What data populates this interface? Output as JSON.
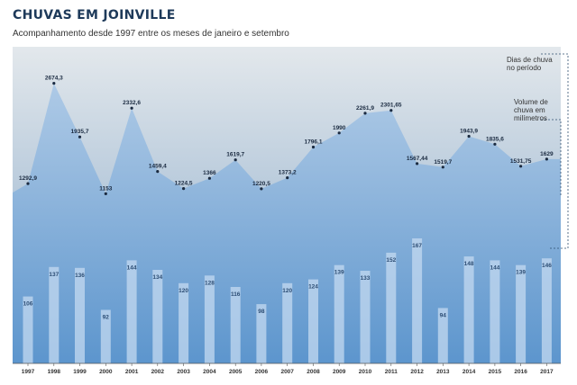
{
  "chart_data": {
    "type": "area+bar",
    "title": "CHUVAS EM JOINVILLE",
    "subtitle": "Acompanhamento desde 1997 entre os meses de janeiro e setembro",
    "categories": [
      "1997",
      "1998",
      "1999",
      "2000",
      "2001",
      "2002",
      "2003",
      "2004",
      "2005",
      "2006",
      "2007",
      "2008",
      "2009",
      "2010",
      "2011",
      "2012",
      "2013",
      "2014",
      "2015",
      "2016",
      "2017"
    ],
    "series": [
      {
        "name": "Volume de chuva em milímetros",
        "type": "area",
        "values": [
          1292.9,
          2674.3,
          1935.7,
          1153,
          2332.6,
          1459.4,
          1224.5,
          1366,
          1619.7,
          1220.5,
          1373.2,
          1796.1,
          1990,
          2261.9,
          2301.65,
          1567.44,
          1519.7,
          1943.9,
          1835.6,
          1531.75,
          1629
        ],
        "labels": [
          "1292,9",
          "2674,3",
          "1935,7",
          "1153",
          "2332,6",
          "1459,4",
          "1224,5",
          "1366",
          "1619,7",
          "1220,5",
          "1373,2",
          "1796,1",
          "1990",
          "2261,9",
          "2301,65",
          "1567,44",
          "1519,7",
          "1943,9",
          "1835,6",
          "1531,75",
          "1629"
        ]
      },
      {
        "name": "Dias de chuva no período",
        "type": "bar",
        "values": [
          106,
          137,
          136,
          92,
          144,
          134,
          120,
          128,
          116,
          98,
          120,
          124,
          139,
          133,
          152,
          167,
          94,
          148,
          144,
          139,
          146
        ],
        "labels": [
          "106",
          "137",
          "136",
          "92",
          "144",
          "134",
          "120",
          "128",
          "116",
          "98",
          "120",
          "124",
          "139",
          "133",
          "152",
          "167",
          "94",
          "148",
          "144",
          "139",
          "146"
        ]
      }
    ],
    "legend_bars": "Dias de chuva no período",
    "legend_area": "Volume de chuva em milímetros",
    "colors": {
      "area": "#8fb6df",
      "background_top": "#dbe3ea",
      "background_bottom": "#5e96cf",
      "bars": "#c4daf0",
      "value_text": "#1a2a40",
      "bar_label": "#2c4d74",
      "title": "#1e3a5a"
    }
  }
}
